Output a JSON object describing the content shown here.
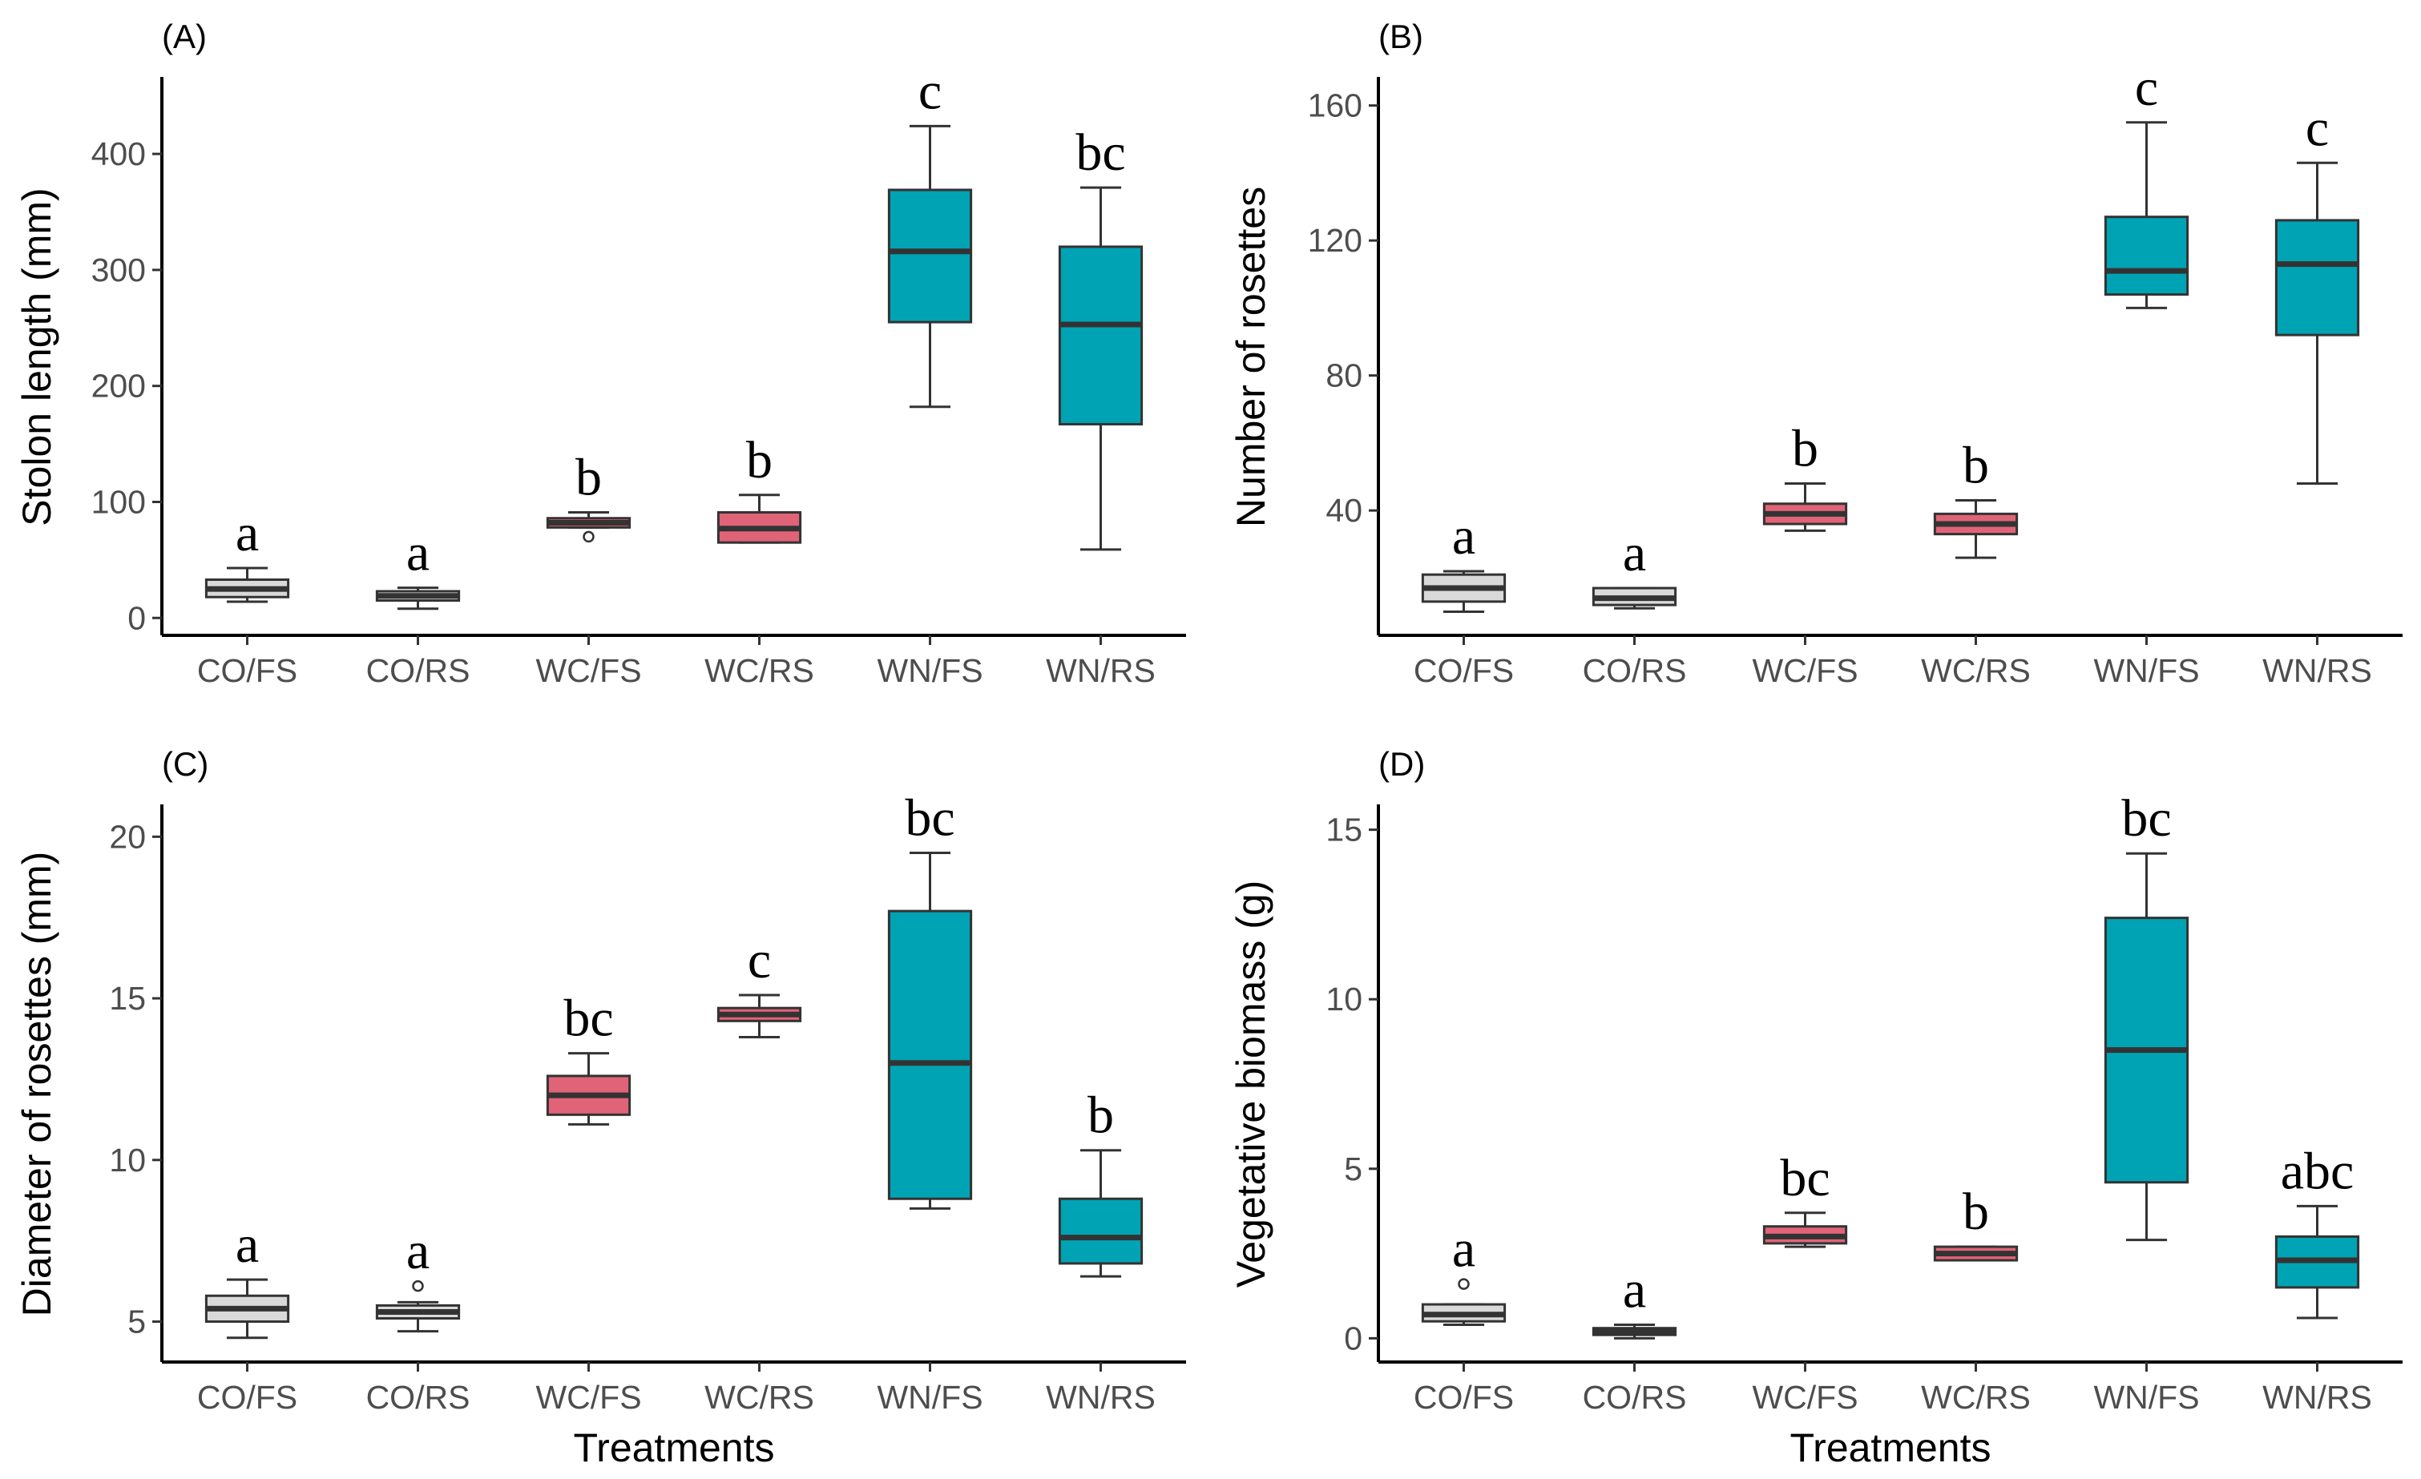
{
  "colors": {
    "CO": "#d9d9d9",
    "WC": "#e06377",
    "WN": "#00a3b4",
    "outline": "#333333"
  },
  "chart_data": [
    {
      "type": "box",
      "panel": "(A)",
      "ylabel": "Stolon length (mm)",
      "xlabel": "",
      "categories": [
        "CO/FS",
        "CO/RS",
        "WC/FS",
        "WC/RS",
        "WN/FS",
        "WN/RS"
      ],
      "groups": [
        "CO",
        "CO",
        "WC",
        "WC",
        "WN",
        "WN"
      ],
      "ylim": [
        -15,
        465
      ],
      "yticks": [
        0,
        100,
        200,
        300,
        400
      ],
      "boxes": [
        {
          "min": 14,
          "q1": 18,
          "median": 25,
          "q3": 33,
          "max": 43,
          "outliers": []
        },
        {
          "min": 8,
          "q1": 15,
          "median": 19,
          "q3": 23,
          "max": 26,
          "outliers": []
        },
        {
          "min": 78,
          "q1": 78,
          "median": 82,
          "q3": 86,
          "max": 91,
          "outliers": [
            70
          ]
        },
        {
          "min": 65,
          "q1": 65,
          "median": 77,
          "q3": 91,
          "max": 106,
          "outliers": []
        },
        {
          "min": 182,
          "q1": 255,
          "median": 316,
          "q3": 369,
          "max": 424,
          "outliers": []
        },
        {
          "min": 59,
          "q1": 167,
          "median": 253,
          "q3": 320,
          "max": 371,
          "outliers": []
        }
      ],
      "letters": [
        "a",
        "a",
        "b",
        "b",
        "c",
        "bc"
      ]
    },
    {
      "type": "box",
      "panel": "(B)",
      "ylabel": "Number of rosettes",
      "xlabel": "",
      "categories": [
        "CO/FS",
        "CO/RS",
        "WC/FS",
        "WC/RS",
        "WN/FS",
        "WN/RS"
      ],
      "groups": [
        "CO",
        "CO",
        "WC",
        "WC",
        "WN",
        "WN"
      ],
      "ylim": [
        3,
        168
      ],
      "yticks": [
        40,
        80,
        120,
        160
      ],
      "boxes": [
        {
          "min": 10,
          "q1": 13,
          "median": 17,
          "q3": 21,
          "max": 22,
          "outliers": []
        },
        {
          "min": 11,
          "q1": 12,
          "median": 14,
          "q3": 17,
          "max": 17,
          "outliers": []
        },
        {
          "min": 34,
          "q1": 36,
          "median": 39,
          "q3": 42,
          "max": 48,
          "outliers": []
        },
        {
          "min": 26,
          "q1": 33,
          "median": 36,
          "q3": 39,
          "max": 43,
          "outliers": []
        },
        {
          "min": 100,
          "q1": 104,
          "median": 111,
          "q3": 127,
          "max": 155,
          "outliers": []
        },
        {
          "min": 48,
          "q1": 92,
          "median": 113,
          "q3": 126,
          "max": 143,
          "outliers": []
        }
      ],
      "letters": [
        "a",
        "a",
        "b",
        "b",
        "c",
        "c"
      ]
    },
    {
      "type": "box",
      "panel": "(C)",
      "ylabel": "Diameter of rosettes (mm)",
      "xlabel": "Treatments",
      "categories": [
        "CO/FS",
        "CO/RS",
        "WC/FS",
        "WC/RS",
        "WN/FS",
        "WN/RS"
      ],
      "groups": [
        "CO",
        "CO",
        "WC",
        "WC",
        "WN",
        "WN"
      ],
      "ylim": [
        3.75,
        20.95
      ],
      "yticks": [
        5,
        10,
        15,
        20
      ],
      "boxes": [
        {
          "min": 4.5,
          "q1": 5.0,
          "median": 5.4,
          "q3": 5.8,
          "max": 6.3,
          "outliers": []
        },
        {
          "min": 4.7,
          "q1": 5.1,
          "median": 5.3,
          "q3": 5.5,
          "max": 5.6,
          "outliers": [
            6.1
          ]
        },
        {
          "min": 11.1,
          "q1": 11.4,
          "median": 12.0,
          "q3": 12.6,
          "max": 13.3,
          "outliers": []
        },
        {
          "min": 13.8,
          "q1": 14.3,
          "median": 14.5,
          "q3": 14.7,
          "max": 15.1,
          "outliers": []
        },
        {
          "min": 8.5,
          "q1": 8.8,
          "median": 13.0,
          "q3": 17.7,
          "max": 19.5,
          "outliers": []
        },
        {
          "min": 6.4,
          "q1": 6.8,
          "median": 7.6,
          "q3": 8.8,
          "max": 10.3,
          "outliers": []
        }
      ],
      "letters": [
        "a",
        "a",
        "bc",
        "c",
        "bc",
        "b"
      ]
    },
    {
      "type": "box",
      "panel": "(D)",
      "ylabel": "Vegetative biomass (g)",
      "xlabel": "Treatments",
      "categories": [
        "CO/FS",
        "CO/RS",
        "WC/FS",
        "WC/RS",
        "WN/FS",
        "WN/RS"
      ],
      "groups": [
        "CO",
        "CO",
        "WC",
        "WC",
        "WN",
        "WN"
      ],
      "ylim": [
        -0.7,
        15.7
      ],
      "yticks": [
        0,
        5,
        10,
        15
      ],
      "boxes": [
        {
          "min": 0.4,
          "q1": 0.5,
          "median": 0.7,
          "q3": 1.0,
          "max": 1.0,
          "outliers": [
            1.6
          ]
        },
        {
          "min": 0.0,
          "q1": 0.1,
          "median": 0.2,
          "q3": 0.3,
          "max": 0.4,
          "outliers": []
        },
        {
          "min": 2.7,
          "q1": 2.8,
          "median": 3.0,
          "q3": 3.3,
          "max": 3.7,
          "outliers": []
        },
        {
          "min": 2.3,
          "q1": 2.3,
          "median": 2.5,
          "q3": 2.7,
          "max": 2.7,
          "outliers": []
        },
        {
          "min": 2.9,
          "q1": 4.6,
          "median": 8.5,
          "q3": 12.4,
          "max": 14.3,
          "outliers": []
        },
        {
          "min": 0.6,
          "q1": 1.5,
          "median": 2.3,
          "q3": 3.0,
          "max": 3.9,
          "outliers": []
        }
      ],
      "letters": [
        "a",
        "a",
        "bc",
        "b",
        "bc",
        "abc"
      ]
    }
  ]
}
